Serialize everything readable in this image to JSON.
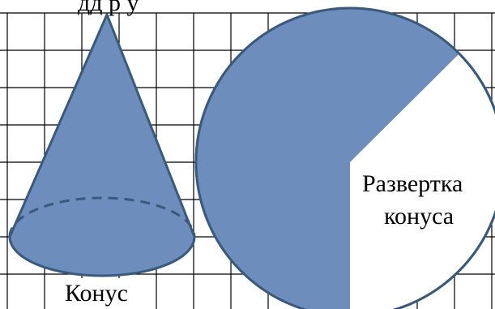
{
  "header_fragment": "дд      р       у",
  "cone": {
    "caption": "Конус"
  },
  "development": {
    "caption_line1": "Развертка",
    "caption_line2": "конуса"
  },
  "colors": {
    "fill": "#6d8dbd",
    "outline": "#3a5a7c",
    "grid": "#000000",
    "background": "#ffffff"
  }
}
